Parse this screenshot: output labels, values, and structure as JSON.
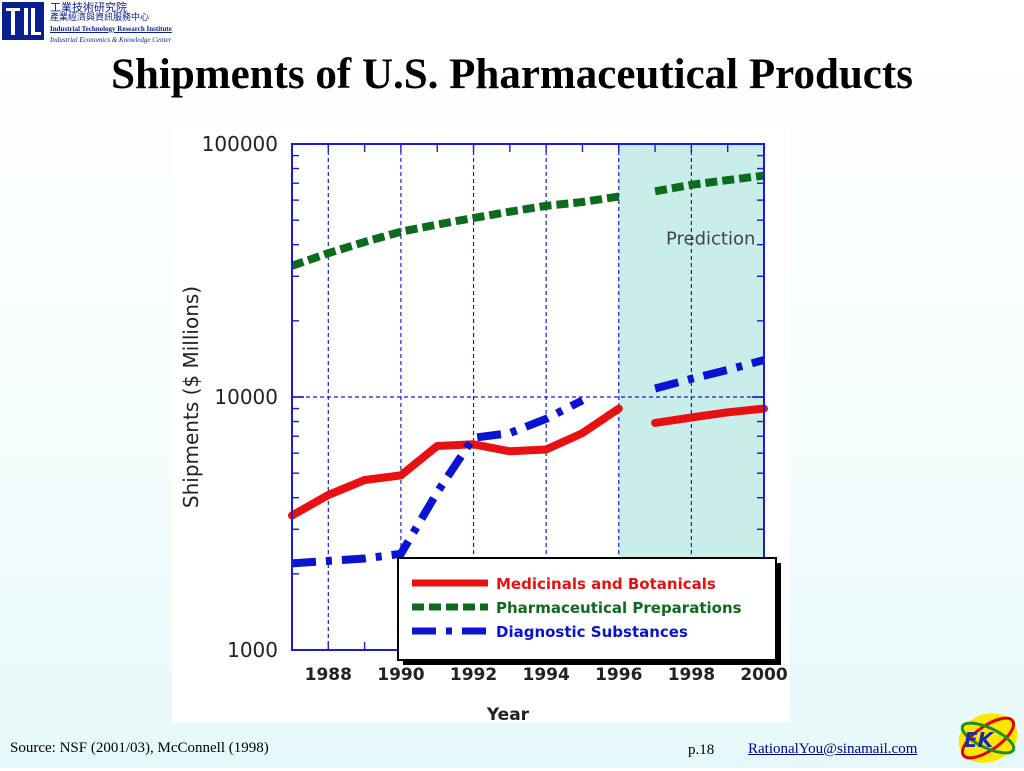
{
  "header": {
    "org_zh_1": "工業技術研究院",
    "org_zh_2": "產業經濟與資訊服務中心",
    "org_en_1": "Industrial Technology Research Institute",
    "org_en_2": "Industrial Economics & Knowledge Center"
  },
  "title": "Shipments of U.S. Pharmaceutical Products",
  "footer": {
    "source": "Source: NSF (2001/03), McConnell (1998)",
    "page": "p.18",
    "email": "RationalYou@sinamail.com"
  },
  "colors": {
    "medicinals": "#e81010",
    "pharma": "#0d6b1e",
    "diagnostic": "#0a14d0",
    "prediction_band": "#c9ede8",
    "grid": "#1a1ad8",
    "brand": "#0a1f8f"
  },
  "chart_data": {
    "type": "line",
    "xlabel": "Year",
    "ylabel": "Shipments ($ Millions)",
    "y_scale": "log",
    "ylim": [
      1000,
      100000
    ],
    "xlim": [
      1987,
      2000
    ],
    "x_ticks": [
      "1988",
      "1990",
      "1992",
      "1994",
      "1996",
      "1998",
      "2000"
    ],
    "y_ticks": [
      "1000",
      "10000",
      "100000"
    ],
    "prediction_label": "Prediction",
    "prediction_range": [
      1996,
      2000
    ],
    "grid": true,
    "legend_position": "bottom-right",
    "series": [
      {
        "name": "Medicinals and Botanicals",
        "style": "solid",
        "color": "#e81010",
        "segments": [
          [
            [
              1987,
              3400
            ],
            [
              1988,
              4100
            ],
            [
              1989,
              4700
            ],
            [
              1990,
              4900
            ],
            [
              1991,
              6400
            ],
            [
              1992,
              6500
            ],
            [
              1993,
              6100
            ],
            [
              1994,
              6200
            ],
            [
              1995,
              7200
            ],
            [
              1996,
              9000
            ]
          ],
          [
            [
              1997,
              7900
            ],
            [
              1998,
              8300
            ],
            [
              1999,
              8700
            ],
            [
              2000,
              9000
            ]
          ]
        ]
      },
      {
        "name": "Pharmaceutical Preparations",
        "style": "dashed",
        "color": "#0d6b1e",
        "segments": [
          [
            [
              1987,
              33000
            ],
            [
              1988,
              37000
            ],
            [
              1989,
              41000
            ],
            [
              1990,
              45000
            ],
            [
              1991,
              48000
            ],
            [
              1992,
              51000
            ],
            [
              1993,
              54000
            ],
            [
              1994,
              57000
            ],
            [
              1995,
              59000
            ],
            [
              1996,
              62000
            ]
          ],
          [
            [
              1997,
              65000
            ],
            [
              1998,
              69000
            ],
            [
              1999,
              72000
            ],
            [
              2000,
              75000
            ]
          ]
        ]
      },
      {
        "name": "Diagnostic Substances",
        "style": "dash-dot",
        "color": "#0a14d0",
        "segments": [
          [
            [
              1987,
              2200
            ],
            [
              1988,
              2250
            ],
            [
              1989,
              2300
            ],
            [
              1990,
              2400
            ],
            [
              1991,
              4200
            ],
            [
              1992,
              6900
            ],
            [
              1993,
              7200
            ],
            [
              1994,
              8200
            ],
            [
              1995,
              9700
            ]
          ],
          [
            [
              1997,
              10800
            ],
            [
              1998,
              11800
            ],
            [
              1999,
              12800
            ],
            [
              2000,
              14000
            ]
          ]
        ]
      }
    ]
  }
}
